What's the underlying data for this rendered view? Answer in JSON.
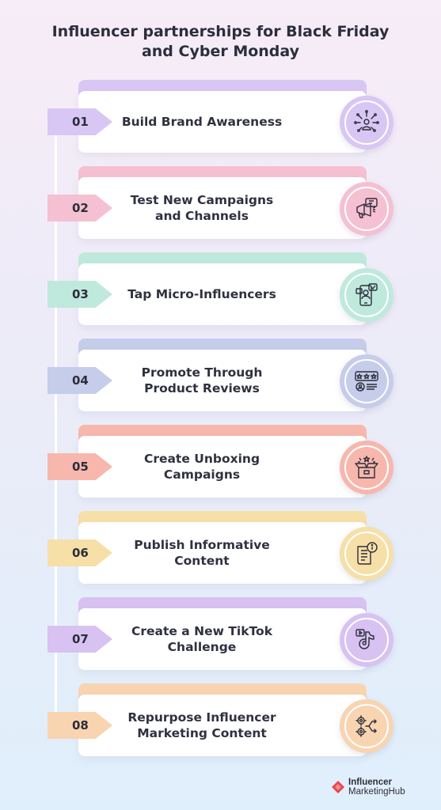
{
  "title": {
    "line1": "Influencer partnerships for Black Friday",
    "line2": "and Cyber Monday"
  },
  "steps": [
    {
      "number": "01",
      "label": "Build Brand Awareness",
      "color": "#d8c7f4",
      "icon": "brand-awareness-icon"
    },
    {
      "number": "02",
      "label": "Test New Campaigns\nand Channels",
      "color": "#f5c0d2",
      "icon": "megaphone-icon"
    },
    {
      "number": "03",
      "label": "Tap Micro-Influencers",
      "color": "#bfe9dc",
      "icon": "phone-influencer-icon"
    },
    {
      "number": "04",
      "label": "Promote Through\nProduct Reviews",
      "color": "#c6cdeb",
      "icon": "review-stars-icon"
    },
    {
      "number": "05",
      "label": "Create Unboxing\nCampaigns",
      "color": "#f7b7ad",
      "icon": "unboxing-icon"
    },
    {
      "number": "06",
      "label": "Publish Informative\nContent",
      "color": "#f6e0a8",
      "icon": "document-info-icon"
    },
    {
      "number": "07",
      "label": "Create a New TikTok\nChallenge",
      "color": "#d8c2f2",
      "icon": "tiktok-icon"
    },
    {
      "number": "08",
      "label": "Repurpose Influencer\nMarketing Content",
      "color": "#f8d4b1",
      "icon": "repurpose-gears-icon"
    }
  ],
  "logo": {
    "line1": "Influencer",
    "line2": "MarketingHub",
    "color": "#e8464f"
  }
}
